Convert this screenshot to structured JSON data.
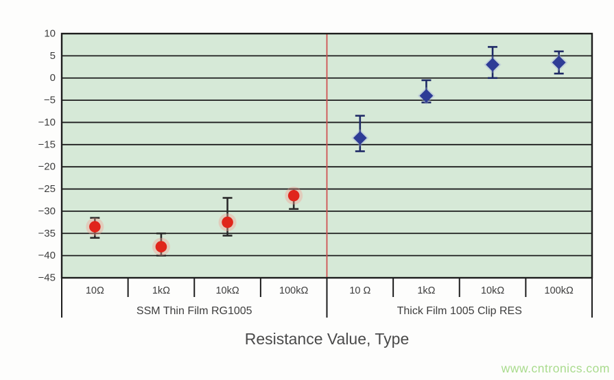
{
  "page": {
    "background": "#fdfdfc"
  },
  "watermark": {
    "text": "www.cntronics.com",
    "color": "#a9db8d"
  },
  "chart_data": {
    "type": "scatter",
    "title": "",
    "xlabel": "Resistance Value, Type",
    "ylabel": "",
    "ylim": [
      -45,
      10
    ],
    "ytick_values": [
      10,
      5,
      0,
      -5,
      -10,
      -15,
      -20,
      -25,
      -30,
      -35,
      -40,
      -45
    ],
    "ytick_labels": [
      "10",
      "5",
      "0",
      "−5",
      "−10",
      "−15",
      "−20",
      "−25",
      "−30",
      "−35",
      "−40",
      "−45"
    ],
    "grid": true,
    "legend": "none",
    "plot_bg": "#d6e9d7",
    "grid_color": "#1c1c1c",
    "axis_color": "#1c1c1c",
    "text_color": "#3d3d3d",
    "title_color": "#4a4a4a",
    "divider_color": "#cf5252",
    "groups": [
      {
        "name": "SSM Thin Film RG1005",
        "marker": "circle",
        "color": "#e0251b",
        "halo": "#f2a093",
        "error_color": "#2a2a2a",
        "points": [
          {
            "label": "10Ω",
            "value": -33.5,
            "err_low": -36,
            "err_high": -31.5
          },
          {
            "label": "1kΩ",
            "value": -38,
            "err_low": -40,
            "err_high": -35
          },
          {
            "label": "10kΩ",
            "value": -32.5,
            "err_low": -35.5,
            "err_high": -27
          },
          {
            "label": "100kΩ",
            "value": -26.5,
            "err_low": -29.5,
            "err_high": -25
          }
        ]
      },
      {
        "name": "Thick Film 1005 Clip RES",
        "marker": "diamond",
        "color": "#2e3c96",
        "halo": "#9aa6d6",
        "error_color": "#1f2a66",
        "points": [
          {
            "label": "10 Ω",
            "value": -13.5,
            "err_low": -16.5,
            "err_high": -8.5
          },
          {
            "label": "1kΩ",
            "value": -4,
            "err_low": -5.5,
            "err_high": -0.5
          },
          {
            "label": "10kΩ",
            "value": 3,
            "err_low": 0,
            "err_high": 7
          },
          {
            "label": "100kΩ",
            "value": 3.5,
            "err_low": 1,
            "err_high": 6
          }
        ]
      }
    ]
  }
}
